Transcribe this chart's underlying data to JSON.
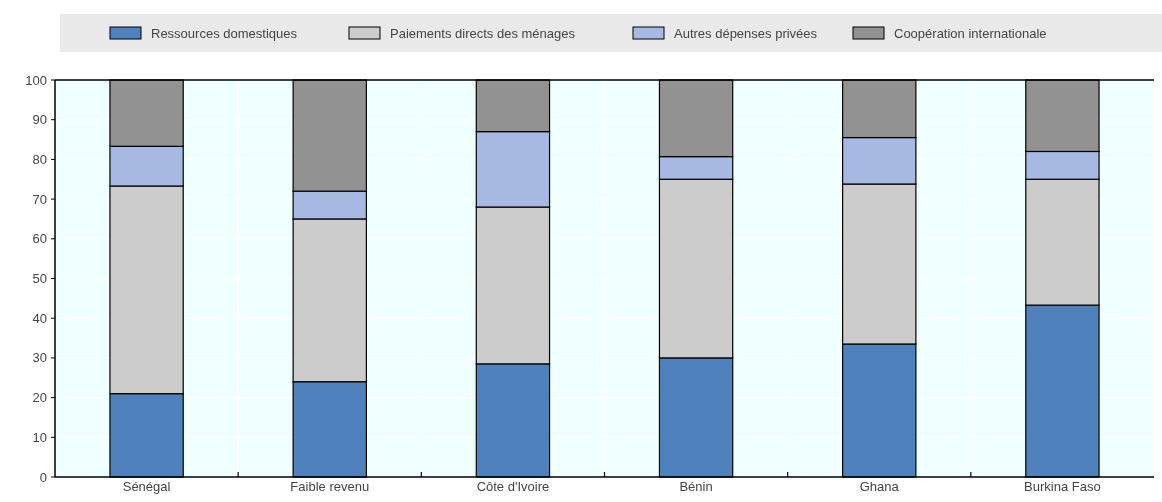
{
  "chart_data": {
    "type": "bar",
    "stacked": true,
    "categories": [
      "Sénégal",
      "Faible revenu",
      "Côte d'Ivoire",
      "Bénin",
      "Ghana",
      "Burkina Faso"
    ],
    "series": [
      {
        "name": "Ressources domestiques",
        "color": "#4f81bd",
        "values": [
          21,
          24,
          28.5,
          30,
          33.5,
          43.3
        ]
      },
      {
        "name": "Paiements directs des ménages",
        "color": "#cccccc",
        "values": [
          52.3,
          41,
          39.5,
          45,
          40.3,
          31.7
        ]
      },
      {
        "name": "Autres dépenses privées",
        "color": "#a7b9e3",
        "values": [
          10,
          7,
          19,
          5.7,
          11.7,
          7
        ]
      },
      {
        "name": "Coopération internationale",
        "color": "#929292",
        "values": [
          16.7,
          28,
          13,
          19.3,
          14.5,
          18
        ]
      }
    ],
    "ylim": [
      0,
      100
    ],
    "yticks": [
      0,
      10,
      20,
      30,
      40,
      50,
      60,
      70,
      80,
      90,
      100
    ],
    "grid": true,
    "legend": "top"
  }
}
